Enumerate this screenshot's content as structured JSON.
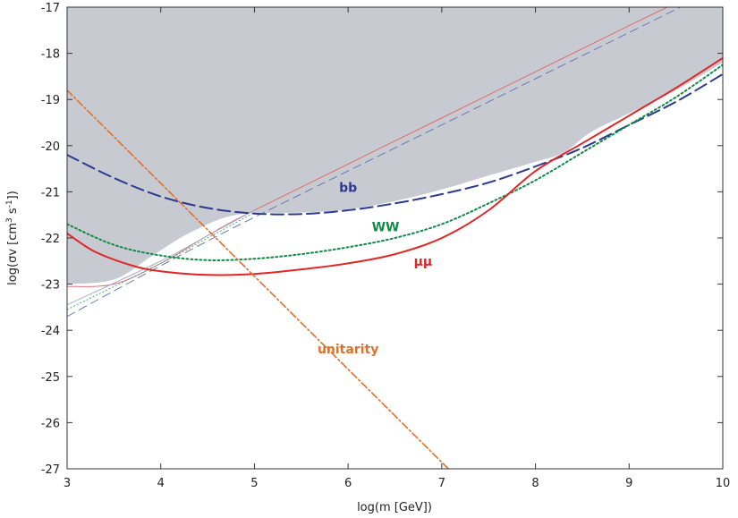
{
  "chart_data": {
    "type": "line",
    "xlabel": "log(m [GeV])",
    "ylabel": "log(σv [cm³ s⁻¹])",
    "ylabel_parts": {
      "base": "log(σv [cm",
      "sup1": "3",
      "mid": " s",
      "sup2": "-1",
      "end": "])"
    },
    "xlim": [
      3,
      10
    ],
    "ylim": [
      -27,
      -17
    ],
    "x_ticks": [
      "3",
      "4",
      "5",
      "6",
      "7",
      "8",
      "9",
      "10"
    ],
    "y_ticks": [
      "-17",
      "-18",
      "-19",
      "-20",
      "-21",
      "-22",
      "-23",
      "-24",
      "-25",
      "-26",
      "-27"
    ],
    "grid": false,
    "excluded_region": {
      "fill": "#c8cad2",
      "upper_boundary": [
        [
          3,
          -17
        ],
        [
          10,
          -17
        ]
      ],
      "lower_boundary": [
        [
          3,
          -23.0
        ],
        [
          3.5,
          -22.9
        ],
        [
          3.9,
          -22.4
        ],
        [
          4.3,
          -21.9
        ],
        [
          4.8,
          -21.5
        ],
        [
          5.5,
          -21.45
        ],
        [
          6.0,
          -21.38
        ],
        [
          6.5,
          -21.2
        ],
        [
          7.0,
          -20.95
        ],
        [
          7.5,
          -20.65
        ],
        [
          8.0,
          -20.35
        ],
        [
          8.3,
          -20.15
        ],
        [
          8.6,
          -19.7
        ],
        [
          9.0,
          -19.3
        ],
        [
          9.5,
          -18.8
        ],
        [
          10.0,
          -18.2
        ]
      ]
    },
    "series": [
      {
        "name": "bb",
        "color": "#2b3a8f",
        "dash": "14,6",
        "width": 2,
        "points": [
          [
            3.0,
            -20.2
          ],
          [
            3.5,
            -20.7
          ],
          [
            4.0,
            -21.1
          ],
          [
            4.5,
            -21.35
          ],
          [
            5.0,
            -21.47
          ],
          [
            5.5,
            -21.48
          ],
          [
            6.0,
            -21.4
          ],
          [
            6.5,
            -21.25
          ],
          [
            7.0,
            -21.05
          ],
          [
            7.5,
            -20.8
          ],
          [
            8.0,
            -20.45
          ],
          [
            8.5,
            -20.05
          ],
          [
            9.0,
            -19.55
          ],
          [
            9.5,
            -19.05
          ],
          [
            10.0,
            -18.45
          ]
        ]
      },
      {
        "name": "WW",
        "color": "#138a4a",
        "dash": "2,3",
        "width": 2,
        "points": [
          [
            3.0,
            -21.7
          ],
          [
            3.5,
            -22.15
          ],
          [
            4.0,
            -22.38
          ],
          [
            4.5,
            -22.48
          ],
          [
            5.0,
            -22.45
          ],
          [
            5.5,
            -22.35
          ],
          [
            6.0,
            -22.2
          ],
          [
            6.5,
            -22.0
          ],
          [
            7.0,
            -21.7
          ],
          [
            7.5,
            -21.25
          ],
          [
            8.0,
            -20.75
          ],
          [
            8.5,
            -20.15
          ],
          [
            9.0,
            -19.55
          ],
          [
            9.5,
            -18.95
          ],
          [
            10.0,
            -18.25
          ]
        ]
      },
      {
        "name": "μμ",
        "color": "#e02727",
        "dash": "",
        "width": 2,
        "points": [
          [
            3.0,
            -21.9
          ],
          [
            3.3,
            -22.3
          ],
          [
            3.7,
            -22.6
          ],
          [
            4.0,
            -22.72
          ],
          [
            4.5,
            -22.8
          ],
          [
            5.0,
            -22.78
          ],
          [
            5.5,
            -22.68
          ],
          [
            6.0,
            -22.55
          ],
          [
            6.5,
            -22.35
          ],
          [
            7.0,
            -22.0
          ],
          [
            7.5,
            -21.4
          ],
          [
            8.0,
            -20.55
          ],
          [
            8.5,
            -19.95
          ],
          [
            9.0,
            -19.35
          ],
          [
            9.5,
            -18.75
          ],
          [
            10.0,
            -18.1
          ]
        ]
      },
      {
        "name": "unitarity",
        "color": "#e0702a",
        "dash": "8,3,2,3",
        "width": 1.6,
        "points": [
          [
            3.0,
            -18.8
          ],
          [
            7.07,
            -27.0
          ]
        ]
      }
    ],
    "thin_lines": [
      {
        "color": "#e06060",
        "dash": "",
        "points": [
          [
            3.0,
            -23.05
          ],
          [
            3.5,
            -23.0
          ],
          [
            4.0,
            -22.55
          ],
          [
            4.5,
            -21.95
          ],
          [
            5.0,
            -21.4
          ],
          [
            7.0,
            -19.4
          ],
          [
            9.0,
            -17.4
          ],
          [
            9.62,
            -16.8
          ]
        ]
      },
      {
        "color": "#6070b0",
        "dash": "10,5",
        "points": [
          [
            3.0,
            -23.7
          ],
          [
            4.0,
            -22.6
          ],
          [
            5.0,
            -21.55
          ],
          [
            7.0,
            -19.55
          ],
          [
            9.0,
            -17.55
          ],
          [
            9.75,
            -16.8
          ]
        ]
      },
      {
        "color": "#40a060",
        "dash": "2,2",
        "points": [
          [
            3.0,
            -23.55
          ],
          [
            4.0,
            -22.55
          ],
          [
            4.5,
            -22.0
          ],
          [
            5.0,
            -21.45
          ]
        ]
      },
      {
        "color": "#9aa6d0",
        "dash": "",
        "points": [
          [
            3.0,
            -23.45
          ],
          [
            4.0,
            -22.5
          ],
          [
            4.5,
            -21.95
          ],
          [
            5.0,
            -21.4
          ]
        ]
      }
    ],
    "annotations": [
      {
        "text": "bb",
        "x": 6.0,
        "y": -21.0,
        "color": "#2b3a8f"
      },
      {
        "text": "WW",
        "x": 6.4,
        "y": -21.85,
        "color": "#138a4a"
      },
      {
        "text": "μμ",
        "x": 6.8,
        "y": -22.6,
        "color": "#e02727"
      },
      {
        "text": "unitarity",
        "x": 6.0,
        "y": -24.5,
        "color": "#e0702a"
      }
    ]
  }
}
